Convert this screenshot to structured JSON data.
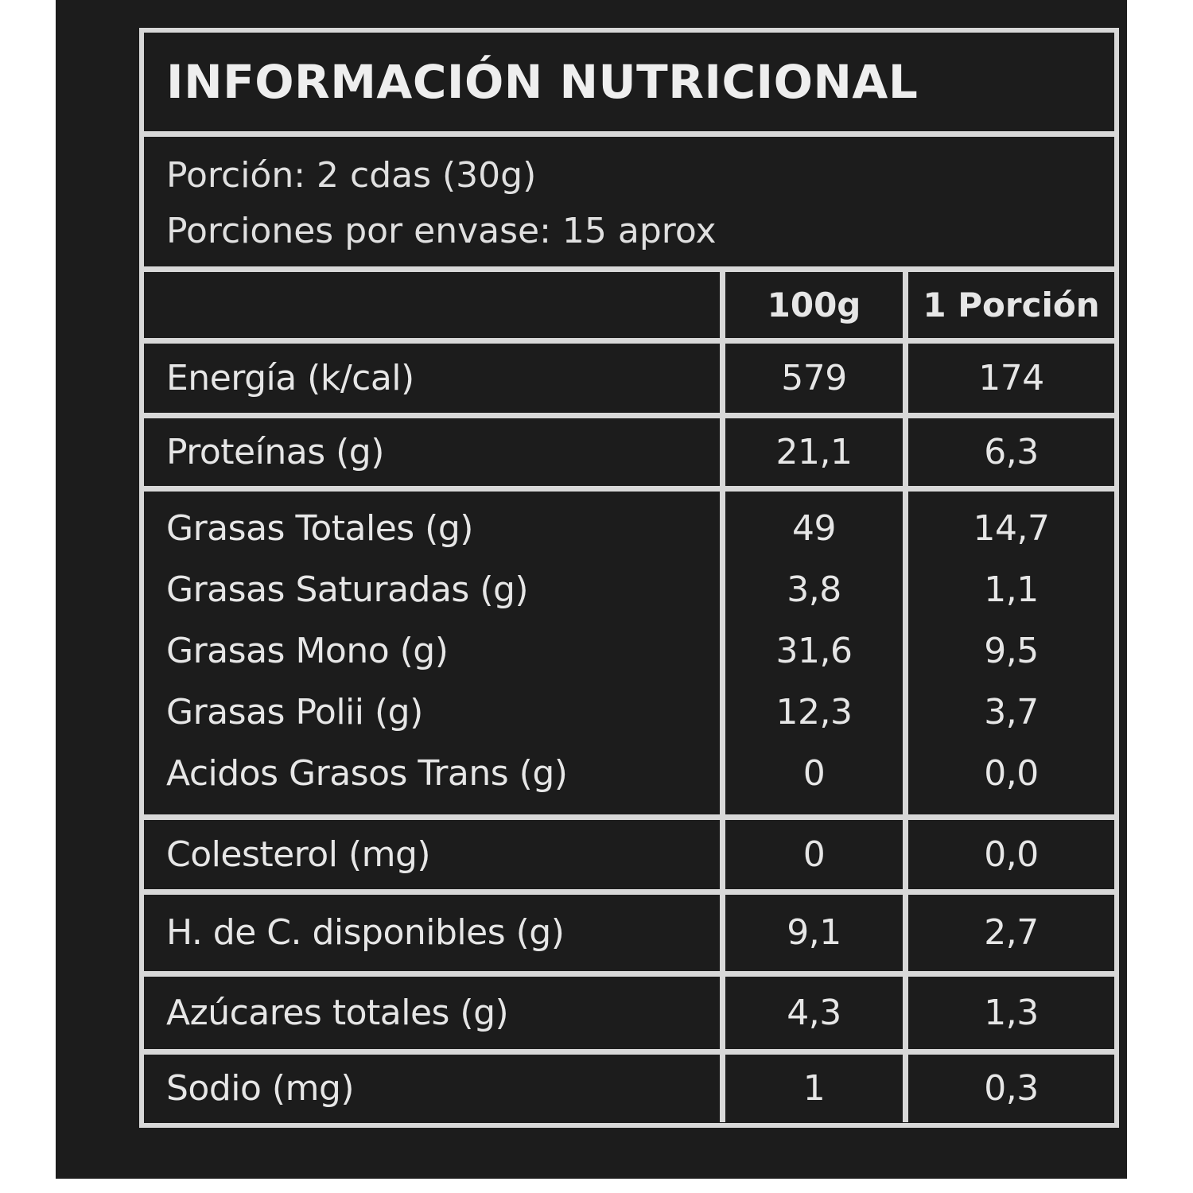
{
  "title": "INFORMACIÓN NUTRICIONAL",
  "serving": {
    "size": "Porción: 2 cdas (30g)",
    "per_container": "Porciones por envase: 15 aprox"
  },
  "columns": [
    "",
    "100g",
    "1 Porción"
  ],
  "rows": [
    {
      "items": [
        {
          "label": "Energía (k/cal)",
          "per100": "579",
          "portion": "174"
        }
      ]
    },
    {
      "items": [
        {
          "label": "Proteínas (g)",
          "per100": "21,1",
          "portion": "6,3"
        }
      ]
    },
    {
      "items": [
        {
          "label": "Grasas Totales (g)",
          "per100": "49",
          "portion": "14,7"
        },
        {
          "label": "Grasas Saturadas (g)",
          "per100": "3,8",
          "portion": "1,1"
        },
        {
          "label": "Grasas Mono (g)",
          "per100": "31,6",
          "portion": "9,5"
        },
        {
          "label": "Grasas Polii (g)",
          "per100": "12,3",
          "portion": "3,7"
        },
        {
          "label": "Acidos Grasos Trans (g)",
          "per100": "0",
          "portion": "0,0"
        }
      ]
    },
    {
      "items": [
        {
          "label": "Colesterol (mg)",
          "per100": "0",
          "portion": "0,0"
        }
      ]
    },
    {
      "items": [
        {
          "label": "H. de C. disponibles (g)",
          "per100": "9,1",
          "portion": "2,7"
        }
      ]
    },
    {
      "items": [
        {
          "label": "Azúcares totales (g)",
          "per100": "4,3",
          "portion": "1,3"
        }
      ]
    },
    {
      "items": [
        {
          "label": "Sodio (mg)",
          "per100": "1",
          "portion": "0,3"
        }
      ]
    }
  ]
}
